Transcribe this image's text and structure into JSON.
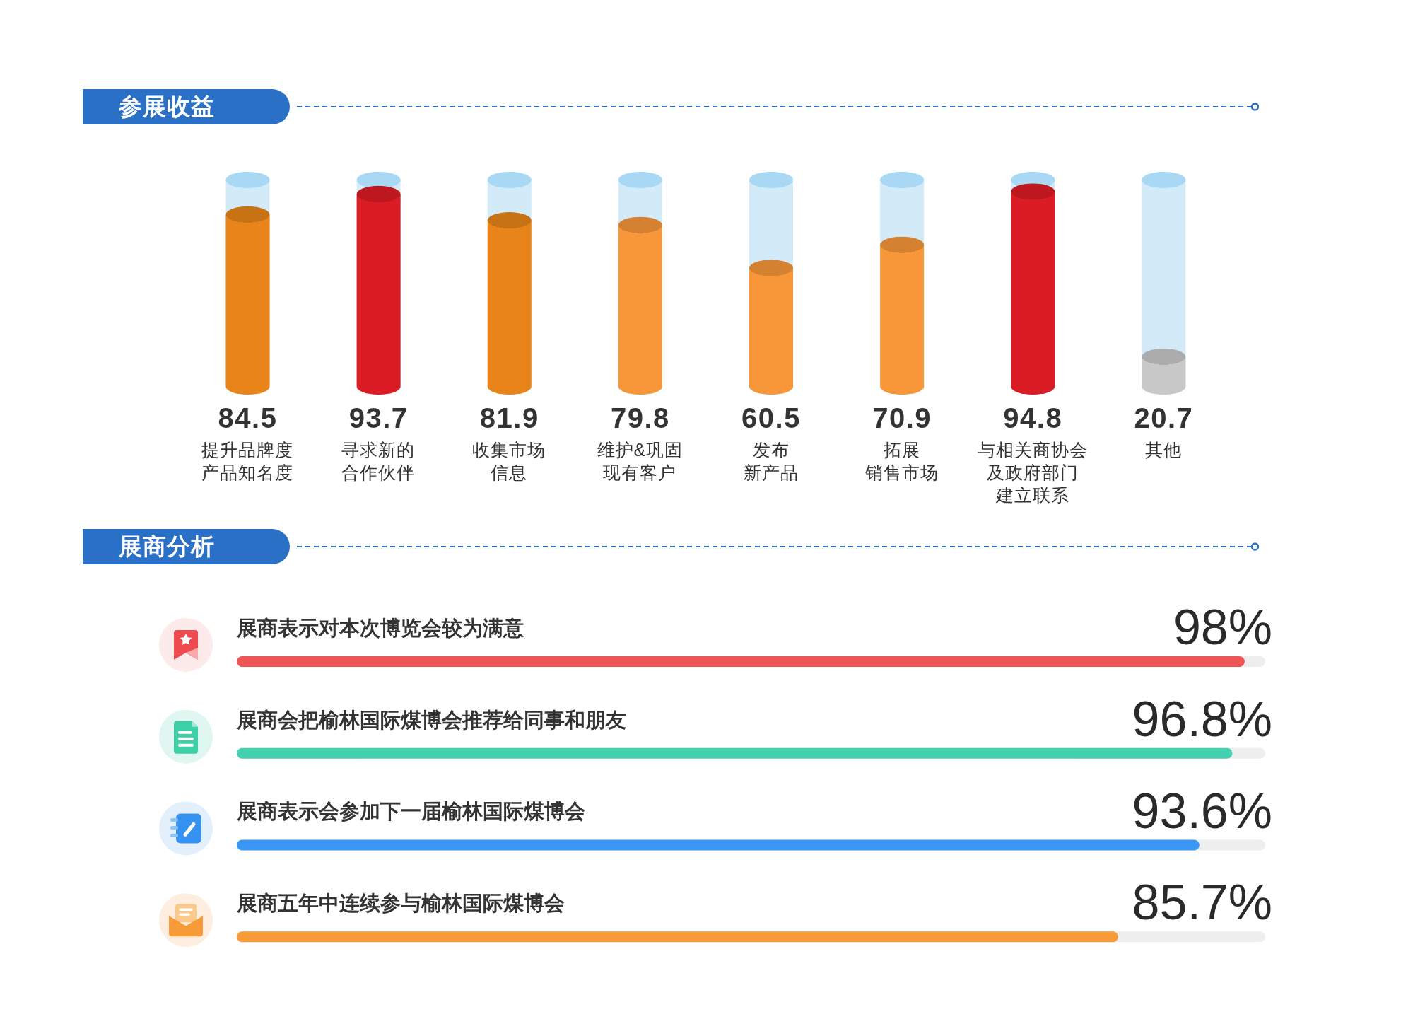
{
  "chart_data": [
    {
      "type": "bar",
      "title": "参展收益",
      "categories": [
        "提升品牌度产品知名度",
        "寻求新的合作伙伴",
        "收集市场信息",
        "维护&巩固现有客户",
        "发布新产品",
        "拓展销售市场",
        "与相关商协会及政府部门建立联系",
        "其他"
      ],
      "values": [
        84.5,
        93.7,
        81.9,
        79.8,
        60.5,
        70.9,
        94.8,
        20.7
      ],
      "colors": [
        "#e8841a",
        "#dc1c24",
        "#e8841a",
        "#f7973a",
        "#f7973a",
        "#f7973a",
        "#dc1c24",
        "#c8c8c8"
      ],
      "ylim": [
        0,
        100
      ],
      "data_labels": true,
      "tick_labels": "x"
    },
    {
      "type": "bar",
      "orientation": "horizontal",
      "title": "展商分析",
      "categories": [
        "展商表示对本次博览会较为满意",
        "展商会把榆林国际煤博会推荐给同事和朋友",
        "展商表示会参加下一届榆林国际煤博会",
        "展商五年中连续参与榆林国际煤博会"
      ],
      "values": [
        98,
        96.8,
        93.6,
        85.7
      ],
      "colors": [
        "#ef5555",
        "#44d1b0",
        "#3a97f5",
        "#f79a38"
      ],
      "xlim": [
        0,
        100
      ],
      "value_labels": [
        "98%",
        "96.8%",
        "93.6%",
        "85.7%"
      ],
      "tick_labels": "y"
    }
  ]
}
